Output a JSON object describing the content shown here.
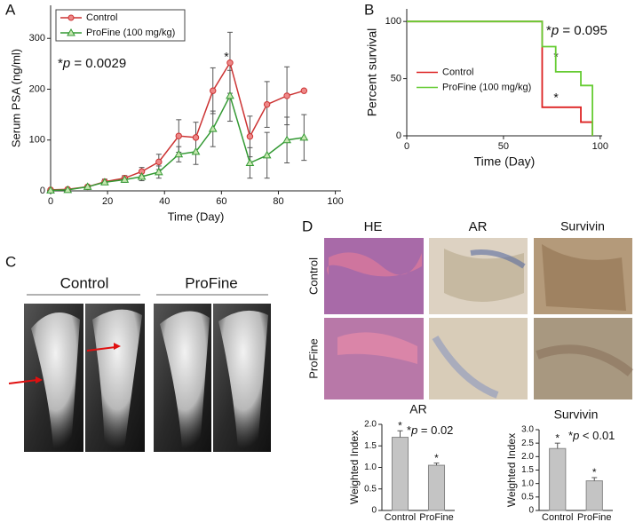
{
  "panel_letters": [
    "A",
    "B",
    "C",
    "D"
  ],
  "xray": {
    "groups": [
      "Control",
      "ProFine"
    ]
  },
  "histology": {
    "columns": [
      "HE",
      "AR",
      "Survivin"
    ],
    "rows": [
      "Control",
      "ProFine"
    ]
  },
  "chart_data": [
    {
      "type": "line",
      "xlabel": "Time (Day)",
      "ylabel": "Serum PSA (ng/ml)",
      "x": [
        0,
        6,
        13,
        19,
        26,
        32,
        38,
        45,
        51,
        57,
        63,
        70,
        76,
        83,
        89
      ],
      "xlim": [
        0,
        102
      ],
      "xticks": [
        0,
        20,
        40,
        60,
        80,
        100
      ],
      "ylim": [
        0,
        365
      ],
      "yticks": [
        0,
        100,
        200,
        300
      ],
      "legend": "upper left",
      "series": [
        {
          "name": "Control",
          "color": "#cc3333",
          "marker": "circle",
          "values": [
            2,
            3,
            8,
            18,
            25,
            38,
            57,
            108,
            105,
            197,
            252,
            107,
            170,
            187,
            197
          ],
          "errors": [
            1,
            2,
            3,
            5,
            5,
            8,
            15,
            32,
            30,
            45,
            60,
            40,
            45,
            57,
            0
          ]
        },
        {
          "name": "ProFine (100 mg/kg)",
          "color": "#339933",
          "marker": "triangle",
          "values": [
            1,
            2,
            8,
            17,
            22,
            28,
            37,
            72,
            77,
            122,
            187,
            55,
            70,
            100,
            105
          ],
          "errors": [
            1,
            2,
            3,
            4,
            5,
            8,
            12,
            15,
            25,
            35,
            50,
            30,
            45,
            45,
            45
          ]
        }
      ],
      "annotation": [
        "*",
        "p",
        " = 0.0029"
      ],
      "point_annotations": [
        {
          "text": "*",
          "x": 63,
          "y": 252
        }
      ]
    },
    {
      "type": "step",
      "xlabel": "Time (Day)",
      "ylabel": "Percent survival",
      "xlim": [
        0,
        101
      ],
      "xticks": [
        0,
        50,
        100
      ],
      "ylim": [
        0,
        111
      ],
      "yticks": [
        0,
        50,
        100
      ],
      "legend": "center left",
      "series": [
        {
          "name": "Control",
          "color": "#dd2222",
          "x": [
            0,
            70,
            70,
            90,
            90,
            96,
            96
          ],
          "values": [
            100,
            100,
            25,
            25,
            12,
            12,
            0
          ]
        },
        {
          "name": "ProFine (100 mg/kg)",
          "color": "#66cc33",
          "x": [
            0,
            70,
            70,
            77,
            77,
            90,
            90,
            96,
            96
          ],
          "values": [
            100,
            100,
            78,
            78,
            56,
            56,
            44,
            44,
            0
          ]
        }
      ],
      "annotation": [
        "*",
        "p",
        " = 0.095"
      ],
      "point_annotations": [
        {
          "text": "*",
          "x": 79,
          "y": 64
        },
        {
          "text": "*",
          "x": 79,
          "y": 28
        }
      ]
    },
    {
      "type": "bar",
      "title": "AR",
      "ylabel": "Weighted Index",
      "categories": [
        "Control",
        "ProFine"
      ],
      "values": [
        1.7,
        1.05
      ],
      "errors": [
        0.15,
        0.05
      ],
      "significance": [
        "*",
        "*"
      ],
      "color": "#c4c4c4",
      "ylim": [
        0,
        2.0
      ],
      "yticks": [
        0,
        0.5,
        {
          "value": 1.0,
          "label": "1.0"
        },
        1.5,
        {
          "value": 2.0,
          "label": "2.0"
        }
      ],
      "annotation": [
        "*",
        "p",
        " = 0.02"
      ]
    },
    {
      "type": "bar",
      "title": "Survivin",
      "ylabel": "Weighted Index",
      "categories": [
        "Control",
        "ProFine"
      ],
      "values": [
        2.3,
        1.1
      ],
      "errors": [
        0.2,
        0.12
      ],
      "significance": [
        "*",
        "*"
      ],
      "color": "#c4c4c4",
      "ylim": [
        0,
        3.0
      ],
      "yticks": [
        0,
        0.5,
        {
          "value": 1.0,
          "label": "1.0"
        },
        1.5,
        {
          "value": 2.0,
          "label": "2.0"
        },
        2.5,
        {
          "value": 3.0,
          "label": "3.0"
        }
      ],
      "annotation": [
        "*",
        "p",
        " < 0.01"
      ]
    }
  ]
}
